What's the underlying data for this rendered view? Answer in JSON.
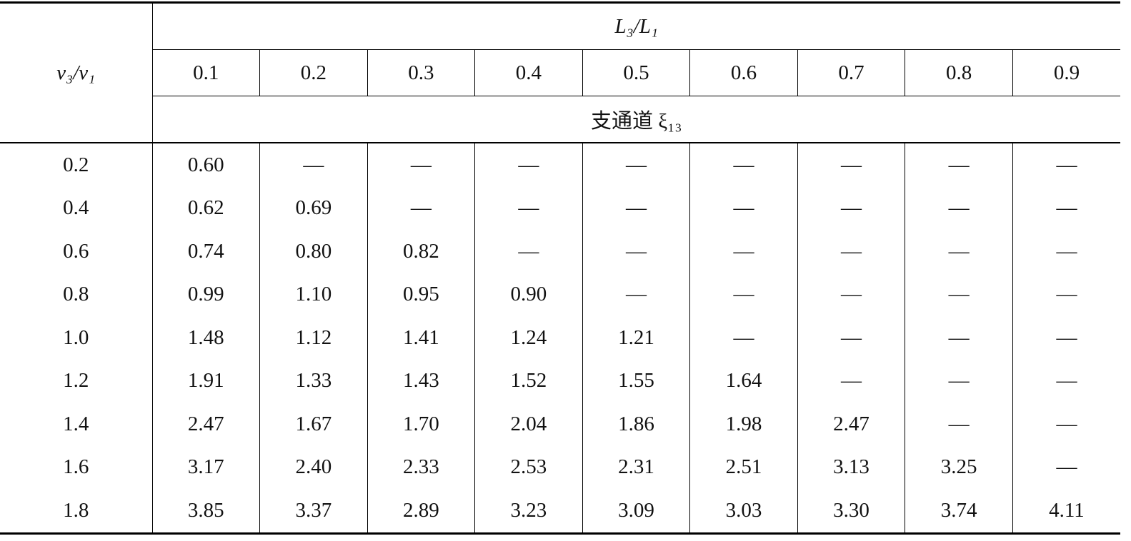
{
  "table": {
    "corner": "v₃/v₁",
    "group": "L₃/L₁",
    "columns": [
      "0.1",
      "0.2",
      "0.3",
      "0.4",
      "0.5",
      "0.6",
      "0.7",
      "0.8",
      "0.9"
    ],
    "subgroup": "支通道 ξ₁₃",
    "rows": [
      {
        "label": "0.2",
        "cells": [
          "0.60",
          "—",
          "—",
          "—",
          "—",
          "—",
          "—",
          "—",
          "—"
        ]
      },
      {
        "label": "0.4",
        "cells": [
          "0.62",
          "0.69",
          "—",
          "—",
          "—",
          "—",
          "—",
          "—",
          "—"
        ]
      },
      {
        "label": "0.6",
        "cells": [
          "0.74",
          "0.80",
          "0.82",
          "—",
          "—",
          "—",
          "—",
          "—",
          "—"
        ]
      },
      {
        "label": "0.8",
        "cells": [
          "0.99",
          "1.10",
          "0.95",
          "0.90",
          "—",
          "—",
          "—",
          "—",
          "—"
        ]
      },
      {
        "label": "1.0",
        "cells": [
          "1.48",
          "1.12",
          "1.41",
          "1.24",
          "1.21",
          "—",
          "—",
          "—",
          "—"
        ]
      },
      {
        "label": "1.2",
        "cells": [
          "1.91",
          "1.33",
          "1.43",
          "1.52",
          "1.55",
          "1.64",
          "—",
          "—",
          "—"
        ]
      },
      {
        "label": "1.4",
        "cells": [
          "2.47",
          "1.67",
          "1.70",
          "2.04",
          "1.86",
          "1.98",
          "2.47",
          "—",
          "—"
        ]
      },
      {
        "label": "1.6",
        "cells": [
          "3.17",
          "2.40",
          "2.33",
          "2.53",
          "2.31",
          "2.51",
          "3.13",
          "3.25",
          "—"
        ]
      },
      {
        "label": "1.8",
        "cells": [
          "3.85",
          "3.37",
          "2.89",
          "3.23",
          "3.09",
          "3.03",
          "3.30",
          "3.74",
          "4.11"
        ]
      }
    ]
  }
}
